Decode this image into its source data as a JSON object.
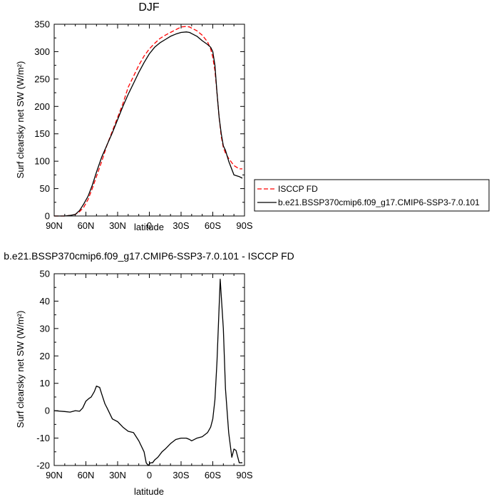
{
  "chart_data": [
    {
      "type": "line",
      "title": "DJF",
      "xlabel": "latitude",
      "ylabel": "Surf clearsky net SW (W/m²)",
      "xlim": [
        90,
        -90
      ],
      "ylim": [
        0,
        350
      ],
      "xticks": [
        90,
        60,
        30,
        0,
        -30,
        -60,
        -90
      ],
      "xtick_labels": [
        "90N",
        "60N",
        "30N",
        "0",
        "30S",
        "60S",
        "90S"
      ],
      "yticks": [
        0,
        50,
        100,
        150,
        200,
        250,
        300,
        350
      ],
      "ytick_labels": [
        "0",
        "50",
        "100",
        "150",
        "200",
        "250",
        "300",
        "350"
      ],
      "legend": "outside-right",
      "series": [
        {
          "name": "ISCCP FD",
          "color": "#ff0000",
          "dash": "dashed",
          "x": [
            90,
            80,
            75,
            70,
            66,
            62,
            58,
            54,
            50,
            45,
            40,
            35,
            30,
            25,
            20,
            15,
            10,
            5,
            0,
            -5,
            -10,
            -15,
            -20,
            -25,
            -30,
            -35,
            -38,
            -40,
            -45,
            -50,
            -55,
            -58,
            -60,
            -62,
            -64,
            -66,
            -68,
            -70,
            -72,
            -75,
            -80,
            -85,
            -88
          ],
          "y": [
            0,
            0,
            1,
            3,
            8,
            16,
            30,
            50,
            72,
            100,
            130,
            155,
            180,
            205,
            235,
            255,
            275,
            292,
            305,
            315,
            324,
            330,
            335,
            340,
            345,
            346,
            345,
            343,
            338,
            330,
            318,
            305,
            290,
            265,
            225,
            180,
            145,
            125,
            115,
            105,
            92,
            86,
            86
          ]
        },
        {
          "name": "b.e21.BSSP370cmip6.f09_g17.CMIP6-SSP3-7.0.101",
          "color": "#000000",
          "dash": "solid",
          "x": [
            90,
            80,
            75,
            70,
            66,
            62,
            58,
            54,
            50,
            45,
            40,
            35,
            30,
            25,
            20,
            15,
            10,
            5,
            0,
            -5,
            -10,
            -15,
            -20,
            -25,
            -30,
            -35,
            -38,
            -40,
            -45,
            -50,
            -55,
            -58,
            -60,
            -62,
            -64,
            -66,
            -68,
            -70,
            -72,
            -75,
            -80,
            -85,
            -88
          ],
          "y": [
            0,
            0,
            1,
            3,
            10,
            22,
            36,
            56,
            80,
            108,
            130,
            152,
            176,
            200,
            222,
            242,
            262,
            280,
            296,
            308,
            316,
            322,
            328,
            332,
            335,
            336,
            335,
            333,
            328,
            320,
            313,
            308,
            300,
            275,
            225,
            180,
            150,
            128,
            120,
            100,
            75,
            72,
            69
          ]
        }
      ]
    },
    {
      "type": "line",
      "title": "b.e21.BSSP370cmip6.f09_g17.CMIP6-SSP3-7.0.101 - ISCCP FD",
      "xlabel": "latitude",
      "ylabel": "Surf clearsky net SW (W/m²)",
      "xlim": [
        90,
        -90
      ],
      "ylim": [
        -20,
        50
      ],
      "xticks": [
        90,
        60,
        30,
        0,
        -30,
        -60,
        -90
      ],
      "xtick_labels": [
        "90N",
        "60N",
        "30N",
        "0",
        "30S",
        "60S",
        "90S"
      ],
      "yticks": [
        -20,
        -10,
        0,
        10,
        20,
        30,
        40,
        50
      ],
      "ytick_labels": [
        "-20",
        "-10",
        "0",
        "10",
        "20",
        "30",
        "40",
        "50"
      ],
      "series": [
        {
          "color": "#000000",
          "dash": "solid",
          "x": [
            90,
            80,
            75,
            70,
            66,
            63,
            60,
            57,
            55,
            52,
            50,
            47,
            45,
            42,
            40,
            35,
            30,
            25,
            20,
            15,
            10,
            5,
            3,
            1,
            -1,
            -3,
            -5,
            -8,
            -12,
            -15,
            -20,
            -25,
            -30,
            -35,
            -38,
            -40,
            -45,
            -50,
            -55,
            -58,
            -60,
            -62,
            -64,
            -67,
            -70,
            -72,
            -75,
            -78,
            -80,
            -82,
            -85,
            -88
          ],
          "y": [
            0,
            -0.3,
            -0.5,
            0,
            -0.2,
            1,
            3.5,
            4.5,
            5,
            7,
            9,
            8.5,
            6,
            2.5,
            1,
            -3,
            -4,
            -6,
            -7.5,
            -8,
            -11,
            -15,
            -19,
            -20,
            -19,
            -19,
            -18,
            -17,
            -15,
            -14,
            -12,
            -10.5,
            -10,
            -10,
            -10.5,
            -11,
            -10,
            -9.5,
            -8,
            -6,
            -3,
            4,
            18,
            48,
            30,
            8,
            -8,
            -17,
            -14,
            -14.5,
            -19,
            -19
          ]
        }
      ]
    }
  ]
}
